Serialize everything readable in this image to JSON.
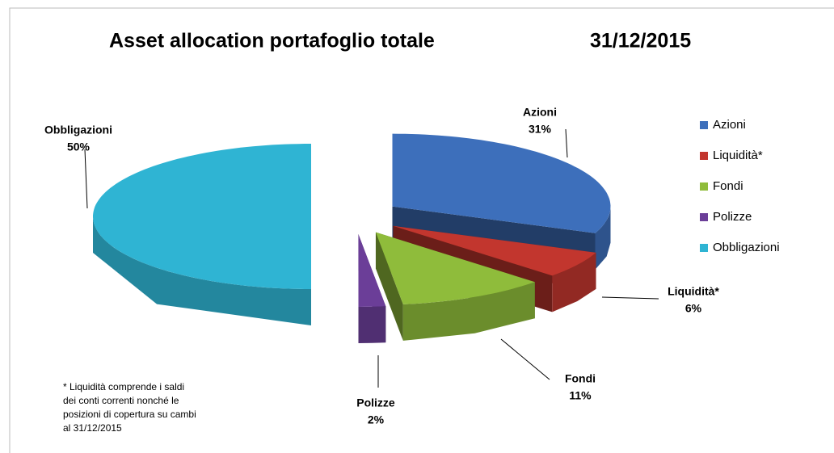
{
  "chart_data": {
    "type": "pie3d",
    "title": "Asset  allocation portafoglio totale",
    "date": "31/12/2015",
    "categories": [
      "Azioni",
      "Liquidità*",
      "Fondi",
      "Polizze",
      "Obbligazioni"
    ],
    "values": [
      31,
      6,
      11,
      2,
      50
    ],
    "value_labels": [
      "31%",
      "6%",
      "11%",
      "2%",
      "50%"
    ],
    "colors": [
      "#3d6fbb",
      "#c2362e",
      "#8fbc3b",
      "#6b3e98",
      "#2fb4d3"
    ],
    "legend": "right",
    "note": [
      "* Liquidità comprende i saldi",
      "dei conti correnti nonché le",
      "posizioni di copertura su cambi",
      "al 31/12/2015"
    ]
  }
}
